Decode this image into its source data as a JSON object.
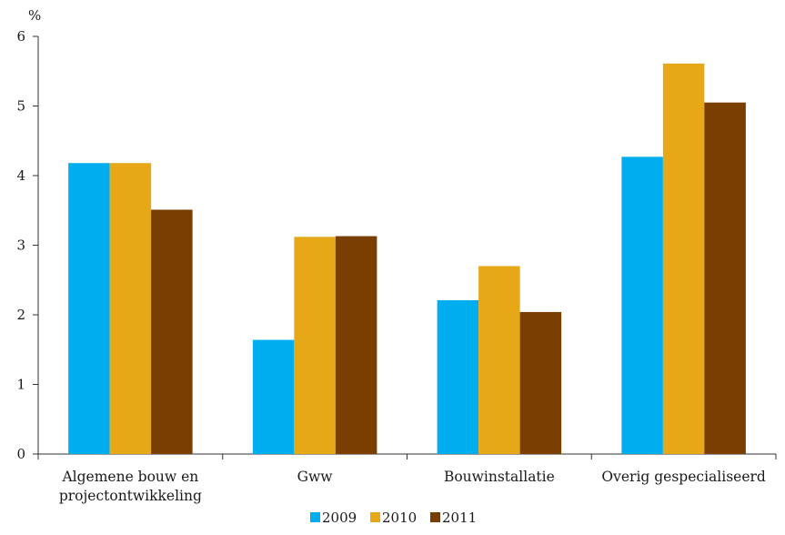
{
  "chart_data": {
    "type": "bar",
    "ylabel": "%",
    "ylim": [
      0,
      6
    ],
    "yticks": [
      "0",
      "1",
      "2",
      "3",
      "4",
      "5",
      "6"
    ],
    "categories": [
      [
        "Algemene bouw en",
        "projectontwikkeling"
      ],
      [
        "Gww"
      ],
      [
        "Bouwinstallatie"
      ],
      [
        "Overig  gespecialiseerd"
      ]
    ],
    "series": [
      {
        "name": "2009",
        "color": "#00aeef",
        "values": [
          4.18,
          1.64,
          2.21,
          4.27
        ]
      },
      {
        "name": "2010",
        "color": "#e6a817",
        "values": [
          4.18,
          3.12,
          2.7,
          5.61
        ]
      },
      {
        "name": "2011",
        "color": "#7a3e00",
        "values": [
          3.51,
          3.13,
          2.04,
          5.05
        ]
      }
    ],
    "grid": false,
    "legend_position": "bottom-center"
  }
}
